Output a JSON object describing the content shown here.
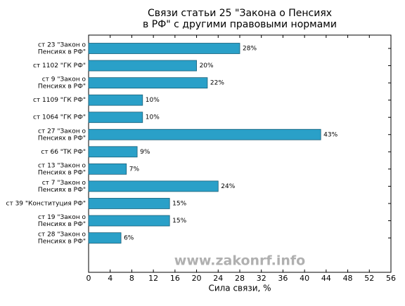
{
  "chart_data": {
    "type": "barh",
    "title": [
      "Связи статьи 25 \"Закона о Пенсиях",
      "в РФ\" с другими правовыми нормами"
    ],
    "xlabel": "Сила связи, %",
    "watermark": "www.zakonrf.info",
    "categories": [
      [
        "ст 23 \"Закон о",
        "Пенсиях в РФ\""
      ],
      [
        "ст 1102 \"ГК РФ\""
      ],
      [
        "ст 9 \"Закон о",
        "Пенсиях в РФ\""
      ],
      [
        "ст 1109 \"ГК РФ\""
      ],
      [
        "ст 1064 \"ГК РФ\""
      ],
      [
        "ст 27 \"Закон о",
        "Пенсиях в РФ\""
      ],
      [
        "ст 66 \"ТК РФ\""
      ],
      [
        "ст 13 \"Закон о",
        "Пенсиях в РФ\""
      ],
      [
        "ст 7 \"Закон о",
        "Пенсиях в РФ\""
      ],
      [
        "ст 39 \"Конституция РФ\""
      ],
      [
        "ст 19 \"Закон о",
        "Пенсиях в РФ\""
      ],
      [
        "ст 28 \"Закон о",
        "Пенсиях в РФ\""
      ]
    ],
    "values": [
      28,
      20,
      22,
      10,
      10,
      43,
      9,
      7,
      24,
      15,
      15,
      6
    ],
    "value_labels": [
      "28%",
      "20%",
      "22%",
      "10%",
      "10%",
      "43%",
      "9%",
      "7%",
      "24%",
      "15%",
      "15%",
      "6%"
    ],
    "color": "#2aa0c8",
    "xlim": [
      0,
      56
    ],
    "xticks": [
      0,
      4,
      8,
      12,
      16,
      20,
      24,
      28,
      32,
      36,
      40,
      44,
      48,
      52,
      56
    ]
  }
}
